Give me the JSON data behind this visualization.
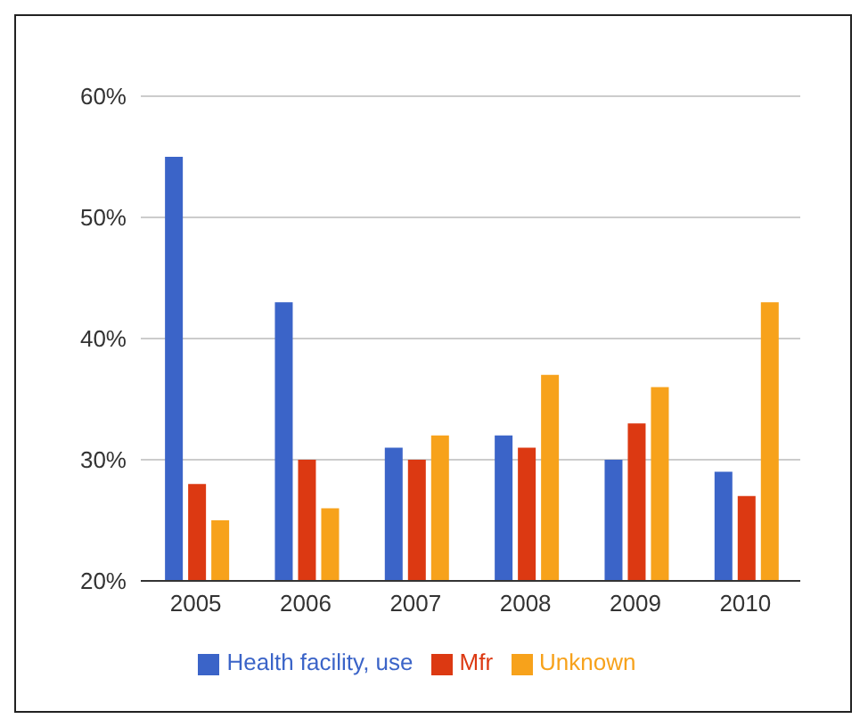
{
  "chart_data": {
    "type": "bar",
    "categories": [
      "2005",
      "2006",
      "2007",
      "2008",
      "2009",
      "2010"
    ],
    "series": [
      {
        "name": "Health facility, use",
        "color": "#3b64c8",
        "values": [
          55,
          43,
          31,
          32,
          30,
          29
        ]
      },
      {
        "name": "Mfr",
        "color": "#dc3912",
        "values": [
          28,
          30,
          30,
          31,
          33,
          27
        ]
      },
      {
        "name": "Unknown",
        "color": "#f7a21b",
        "values": [
          25,
          26,
          32,
          37,
          36,
          43
        ]
      }
    ],
    "ylim": [
      20,
      60
    ],
    "yticks": [
      {
        "value": 20,
        "label": "20%"
      },
      {
        "value": 30,
        "label": "30%"
      },
      {
        "value": 40,
        "label": "40%"
      },
      {
        "value": 50,
        "label": "50%"
      },
      {
        "value": 60,
        "label": "60%"
      }
    ],
    "grid": "y",
    "legend": "bottom"
  }
}
